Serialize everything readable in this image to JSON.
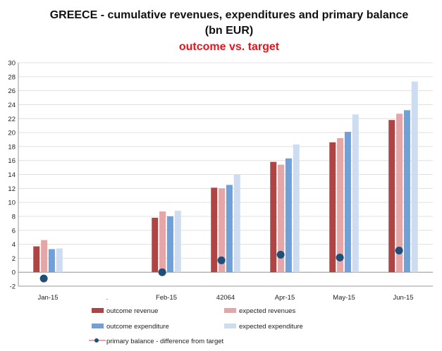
{
  "chart_data": {
    "type": "bar",
    "title": "GREECE - cumulative revenues, expenditures and primary balance",
    "title_line2": "(bn EUR)",
    "subtitle": "outcome vs. target",
    "xlabel": "",
    "ylabel": "",
    "ylim": [
      -2,
      30
    ],
    "ytick_step": 2,
    "categories": [
      "Jan-15",
      ".",
      "Feb-15",
      "42064",
      "Apr-15",
      "May-15",
      "Jun-15"
    ],
    "series": [
      {
        "name": "outcome revenue",
        "kind": "bar",
        "color": "#b04444",
        "values": [
          3.7,
          null,
          7.8,
          12.1,
          15.8,
          18.6,
          21.8
        ]
      },
      {
        "name": "expected revenues",
        "kind": "bar",
        "color": "#e4a6a6",
        "values": [
          4.6,
          null,
          8.7,
          12.0,
          15.4,
          19.2,
          22.7
        ]
      },
      {
        "name": "outcome expenditure",
        "kind": "bar",
        "color": "#6fa0da",
        "values": [
          3.3,
          null,
          8.0,
          12.5,
          16.3,
          20.1,
          23.2
        ]
      },
      {
        "name": "expected expenditure",
        "kind": "bar",
        "color": "#cddcf0",
        "values": [
          3.4,
          null,
          8.8,
          14.0,
          18.3,
          22.6,
          27.3
        ]
      },
      {
        "name": "primary balance - difference from target",
        "kind": "point",
        "color": "#1f4e79",
        "values": [
          -0.9,
          null,
          0.0,
          1.7,
          2.5,
          2.1,
          3.1
        ]
      }
    ],
    "legend": {
      "placement": "bottom",
      "entries": [
        "outcome revenue",
        "expected revenues",
        "outcome expenditure",
        "expected expenditure",
        "primary balance - difference from target"
      ]
    }
  }
}
